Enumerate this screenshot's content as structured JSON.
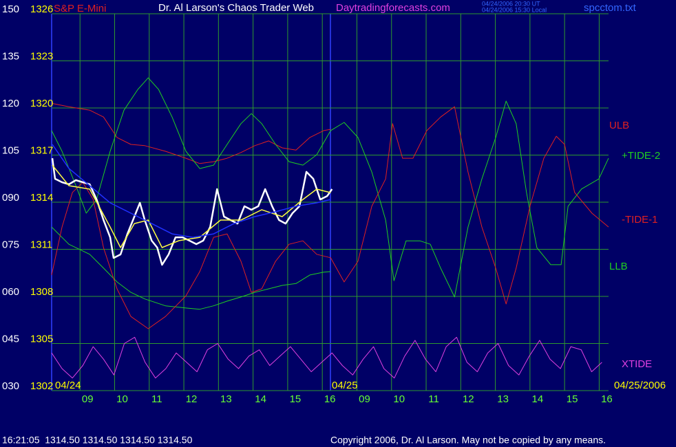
{
  "chart_data": {
    "type": "line",
    "instrument": "S&P E-Mini",
    "title": "Dr. Al Larson's Chaos Trader Web",
    "site": "Daytradingforecasts.com",
    "time_ut": "04/24/2006 20:30 UT",
    "time_local": "04/24/2006 15:30 Local",
    "file": "spcctom.txt",
    "date_start": "04/24",
    "date_mid": "04/25",
    "date_end": "04/25/2006",
    "status": "16:21:05  1314.50 1314.50 1314.50 1314.50",
    "copyright": "Copyright 2006, Dr. Al Larson. May not be copied by any means.",
    "grid": true,
    "xlim": [
      0.18,
      16.27
    ],
    "xticks": [
      {
        "value": 1,
        "label": "09"
      },
      {
        "value": 2,
        "label": "10"
      },
      {
        "value": 3,
        "label": "11"
      },
      {
        "value": 4,
        "label": "12"
      },
      {
        "value": 5,
        "label": "13"
      },
      {
        "value": 6,
        "label": "14"
      },
      {
        "value": 7,
        "label": "15"
      },
      {
        "value": 8,
        "label": "16"
      },
      {
        "value": 9,
        "label": "09"
      },
      {
        "value": 10,
        "label": "10"
      },
      {
        "value": 11,
        "label": "11"
      },
      {
        "value": 12,
        "label": "12"
      },
      {
        "value": 13,
        "label": "13"
      },
      {
        "value": 14,
        "label": "14"
      },
      {
        "value": 15,
        "label": "15"
      },
      {
        "value": 16,
        "label": "16"
      }
    ],
    "ylim": [
      30,
      150
    ],
    "yticks": [
      150,
      135,
      120,
      105,
      {
        "value": 90,
        "label": "090"
      },
      {
        "value": 75,
        "label": "075"
      },
      {
        "value": 60,
        "label": "060"
      },
      {
        "value": 45,
        "label": "045"
      },
      {
        "value": 30,
        "label": "030"
      }
    ],
    "y2lim": [
      1302,
      1326
    ],
    "y2ticks": [
      1326,
      1323,
      1320,
      1317,
      1314,
      1311,
      1308,
      1305,
      1302
    ],
    "series": [
      {
        "name": "ULB",
        "color": "#e02020",
        "x": [
          0.18,
          0.68,
          1.28,
          1.68,
          2.07,
          2.47,
          2.87,
          3.47,
          4.06,
          4.46,
          4.86,
          5.25,
          5.65,
          6.05,
          6.45,
          6.84,
          7.24,
          7.64,
          8.04,
          8.24
        ],
        "values": [
          121.5,
          120.4,
          119.3,
          117.1,
          110.6,
          108.4,
          108.0,
          106.2,
          104.0,
          102.3,
          102.9,
          104.0,
          105.8,
          108.0,
          109.5,
          107.3,
          106.6,
          110.6,
          112.8,
          113.2
        ]
      },
      {
        "name": "LLB",
        "color": "#20d020",
        "x": [
          0.18,
          0.68,
          1.28,
          1.68,
          2.07,
          2.47,
          2.87,
          3.47,
          4.06,
          4.46,
          4.86,
          5.25,
          5.65,
          6.05,
          6.45,
          6.84,
          7.24,
          7.64,
          8.04,
          8.24
        ],
        "values": [
          82.1,
          76.6,
          73.4,
          69.0,
          64.6,
          61.3,
          59.2,
          57.0,
          56.3,
          55.9,
          57.0,
          58.5,
          59.8,
          61.3,
          62.4,
          63.5,
          64.1,
          66.8,
          67.7,
          67.9
        ]
      },
      {
        "name": "+TIDE-2",
        "color": "#20d020",
        "x": [
          0.18,
          0.48,
          0.88,
          1.18,
          1.48,
          1.87,
          2.27,
          2.67,
          2.97,
          3.27,
          3.66,
          4.06,
          4.46,
          4.86,
          5.25,
          5.65,
          5.95,
          6.25,
          6.65,
          7.04,
          7.44,
          7.84,
          8.24,
          8.63,
          9.03,
          9.43,
          9.83,
          10.07,
          10.42,
          10.82,
          11.12,
          11.42,
          11.82,
          12.21,
          12.61,
          13.01,
          13.31,
          13.6,
          13.9,
          14.2,
          14.6,
          14.9,
          15.1,
          15.49,
          15.99,
          16.27
        ],
        "values": [
          112.8,
          106.2,
          95.3,
          86.5,
          90.9,
          106.2,
          119.3,
          125.9,
          129.6,
          125.9,
          117.1,
          106.2,
          100.7,
          101.8,
          108.4,
          115.0,
          118.2,
          115.0,
          108.4,
          102.9,
          101.8,
          105.1,
          112.8,
          115.4,
          110.6,
          99.6,
          84.3,
          65.0,
          77.7,
          77.7,
          76.6,
          69.0,
          59.8,
          82.1,
          97.4,
          110.6,
          122.2,
          115.0,
          93.1,
          75.5,
          70.1,
          70.1,
          88.7,
          94.2,
          97.4,
          104.0
        ]
      },
      {
        "name": "-TIDE-1",
        "color": "#e02020",
        "x": [
          0.18,
          0.48,
          0.78,
          1.08,
          1.38,
          1.68,
          2.07,
          2.47,
          2.97,
          3.47,
          4.06,
          4.46,
          4.86,
          5.25,
          5.65,
          5.95,
          6.25,
          6.65,
          7.04,
          7.44,
          7.84,
          8.24,
          8.63,
          9.03,
          9.43,
          9.83,
          10.03,
          10.32,
          10.62,
          11.02,
          11.42,
          11.82,
          12.21,
          12.61,
          13.01,
          13.31,
          13.6,
          14.0,
          14.4,
          14.76,
          15.0,
          15.29,
          15.79,
          16.27
        ],
        "values": [
          66.8,
          82.1,
          93.1,
          96.3,
          90.9,
          75.5,
          62.4,
          53.6,
          49.7,
          53.6,
          60.2,
          67.9,
          78.8,
          79.9,
          71.2,
          61.3,
          62.4,
          71.2,
          76.6,
          77.7,
          73.4,
          72.3,
          64.6,
          71.2,
          88.7,
          97.4,
          115.0,
          104.0,
          104.0,
          112.8,
          117.1,
          120.4,
          99.6,
          82.1,
          69.0,
          57.6,
          69.0,
          88.7,
          104.0,
          111.0,
          108.4,
          93.1,
          86.5,
          82.1
        ]
      },
      {
        "name": "XTIDE",
        "color": "#e040e0",
        "x": [
          0.18,
          0.48,
          0.78,
          1.08,
          1.38,
          1.68,
          1.98,
          2.28,
          2.58,
          2.88,
          3.18,
          3.48,
          3.78,
          4.08,
          4.38,
          4.68,
          4.98,
          5.28,
          5.58,
          5.88,
          6.18,
          6.48,
          6.78,
          7.08,
          7.38,
          7.68,
          7.98,
          8.28,
          8.58,
          8.88,
          9.18,
          9.48,
          9.78,
          10.08,
          10.38,
          10.68,
          10.98,
          11.28,
          11.58,
          11.88,
          12.18,
          12.48,
          12.78,
          13.08,
          13.38,
          13.68,
          13.98,
          14.28,
          14.58,
          14.88,
          15.18,
          15.48,
          15.78,
          16.08
        ],
        "values": [
          42,
          37,
          34,
          38,
          44,
          40,
          35,
          45,
          47,
          39,
          34,
          37,
          42,
          39,
          36,
          43,
          45,
          40,
          37,
          41,
          43,
          38,
          41,
          44,
          40,
          36,
          39,
          42,
          38,
          35,
          40,
          44,
          37,
          34,
          41,
          46,
          40,
          36,
          44,
          47,
          39,
          36,
          42,
          45,
          38,
          35,
          41,
          46,
          40,
          37,
          44,
          43,
          36,
          39
        ]
      },
      {
        "color": "#ffffff",
        "axis": "y2",
        "width": 2.5,
        "x": [
          0.2,
          0.28,
          0.48,
          0.68,
          0.88,
          1.08,
          1.28,
          1.48,
          1.68,
          1.87,
          1.97,
          2.17,
          2.37,
          2.57,
          2.73,
          2.87,
          3.07,
          3.23,
          3.37,
          3.56,
          3.76,
          3.96,
          4.16,
          4.36,
          4.56,
          4.76,
          4.96,
          5.16,
          5.35,
          5.55,
          5.75,
          5.95,
          6.15,
          6.35,
          6.55,
          6.75,
          6.94,
          7.14,
          7.34,
          7.54,
          7.74,
          7.94,
          8.14,
          8.28
        ],
        "values": [
          1316.8,
          1315.49,
          1315.27,
          1315.14,
          1315.4,
          1315.27,
          1315.14,
          1314.17,
          1312.86,
          1311.76,
          1310.45,
          1310.67,
          1311.98,
          1313.08,
          1313.96,
          1312.86,
          1311.55,
          1311.11,
          1310.01,
          1310.67,
          1311.76,
          1311.76,
          1311.55,
          1311.33,
          1311.55,
          1312.42,
          1314.83,
          1313.08,
          1312.86,
          1312.64,
          1313.74,
          1313.52,
          1313.74,
          1314.83,
          1313.74,
          1312.86,
          1312.64,
          1313.3,
          1313.74,
          1315.93,
          1315.49,
          1314.17,
          1314.39,
          1314.83
        ]
      },
      {
        "color": "#ffff40",
        "axis": "y2",
        "width": 1.5,
        "x": [
          0.2,
          0.68,
          1.28,
          1.87,
          2.17,
          2.57,
          2.97,
          3.37,
          3.86,
          4.46,
          5.06,
          5.65,
          6.25,
          6.84,
          7.44,
          7.84,
          8.24
        ],
        "values": [
          1316.36,
          1315.05,
          1314.83,
          1312.42,
          1311.11,
          1312.64,
          1312.86,
          1311.11,
          1311.55,
          1311.76,
          1312.86,
          1312.86,
          1313.52,
          1313.08,
          1314.17,
          1314.83,
          1314.61
        ]
      },
      {
        "color": "#2030ff",
        "axis": "y2",
        "width": 1.5,
        "x": [
          0.2,
          0.68,
          1.28,
          1.87,
          2.47,
          3.07,
          3.66,
          4.26,
          4.86,
          5.45,
          6.05,
          6.65,
          7.24,
          7.84,
          8.24
        ],
        "values": [
          1317.68,
          1316.15,
          1315.05,
          1313.96,
          1313.3,
          1312.64,
          1311.98,
          1311.76,
          1311.98,
          1312.64,
          1313.08,
          1313.39,
          1313.74,
          1313.96,
          1314.17
        ]
      }
    ]
  }
}
